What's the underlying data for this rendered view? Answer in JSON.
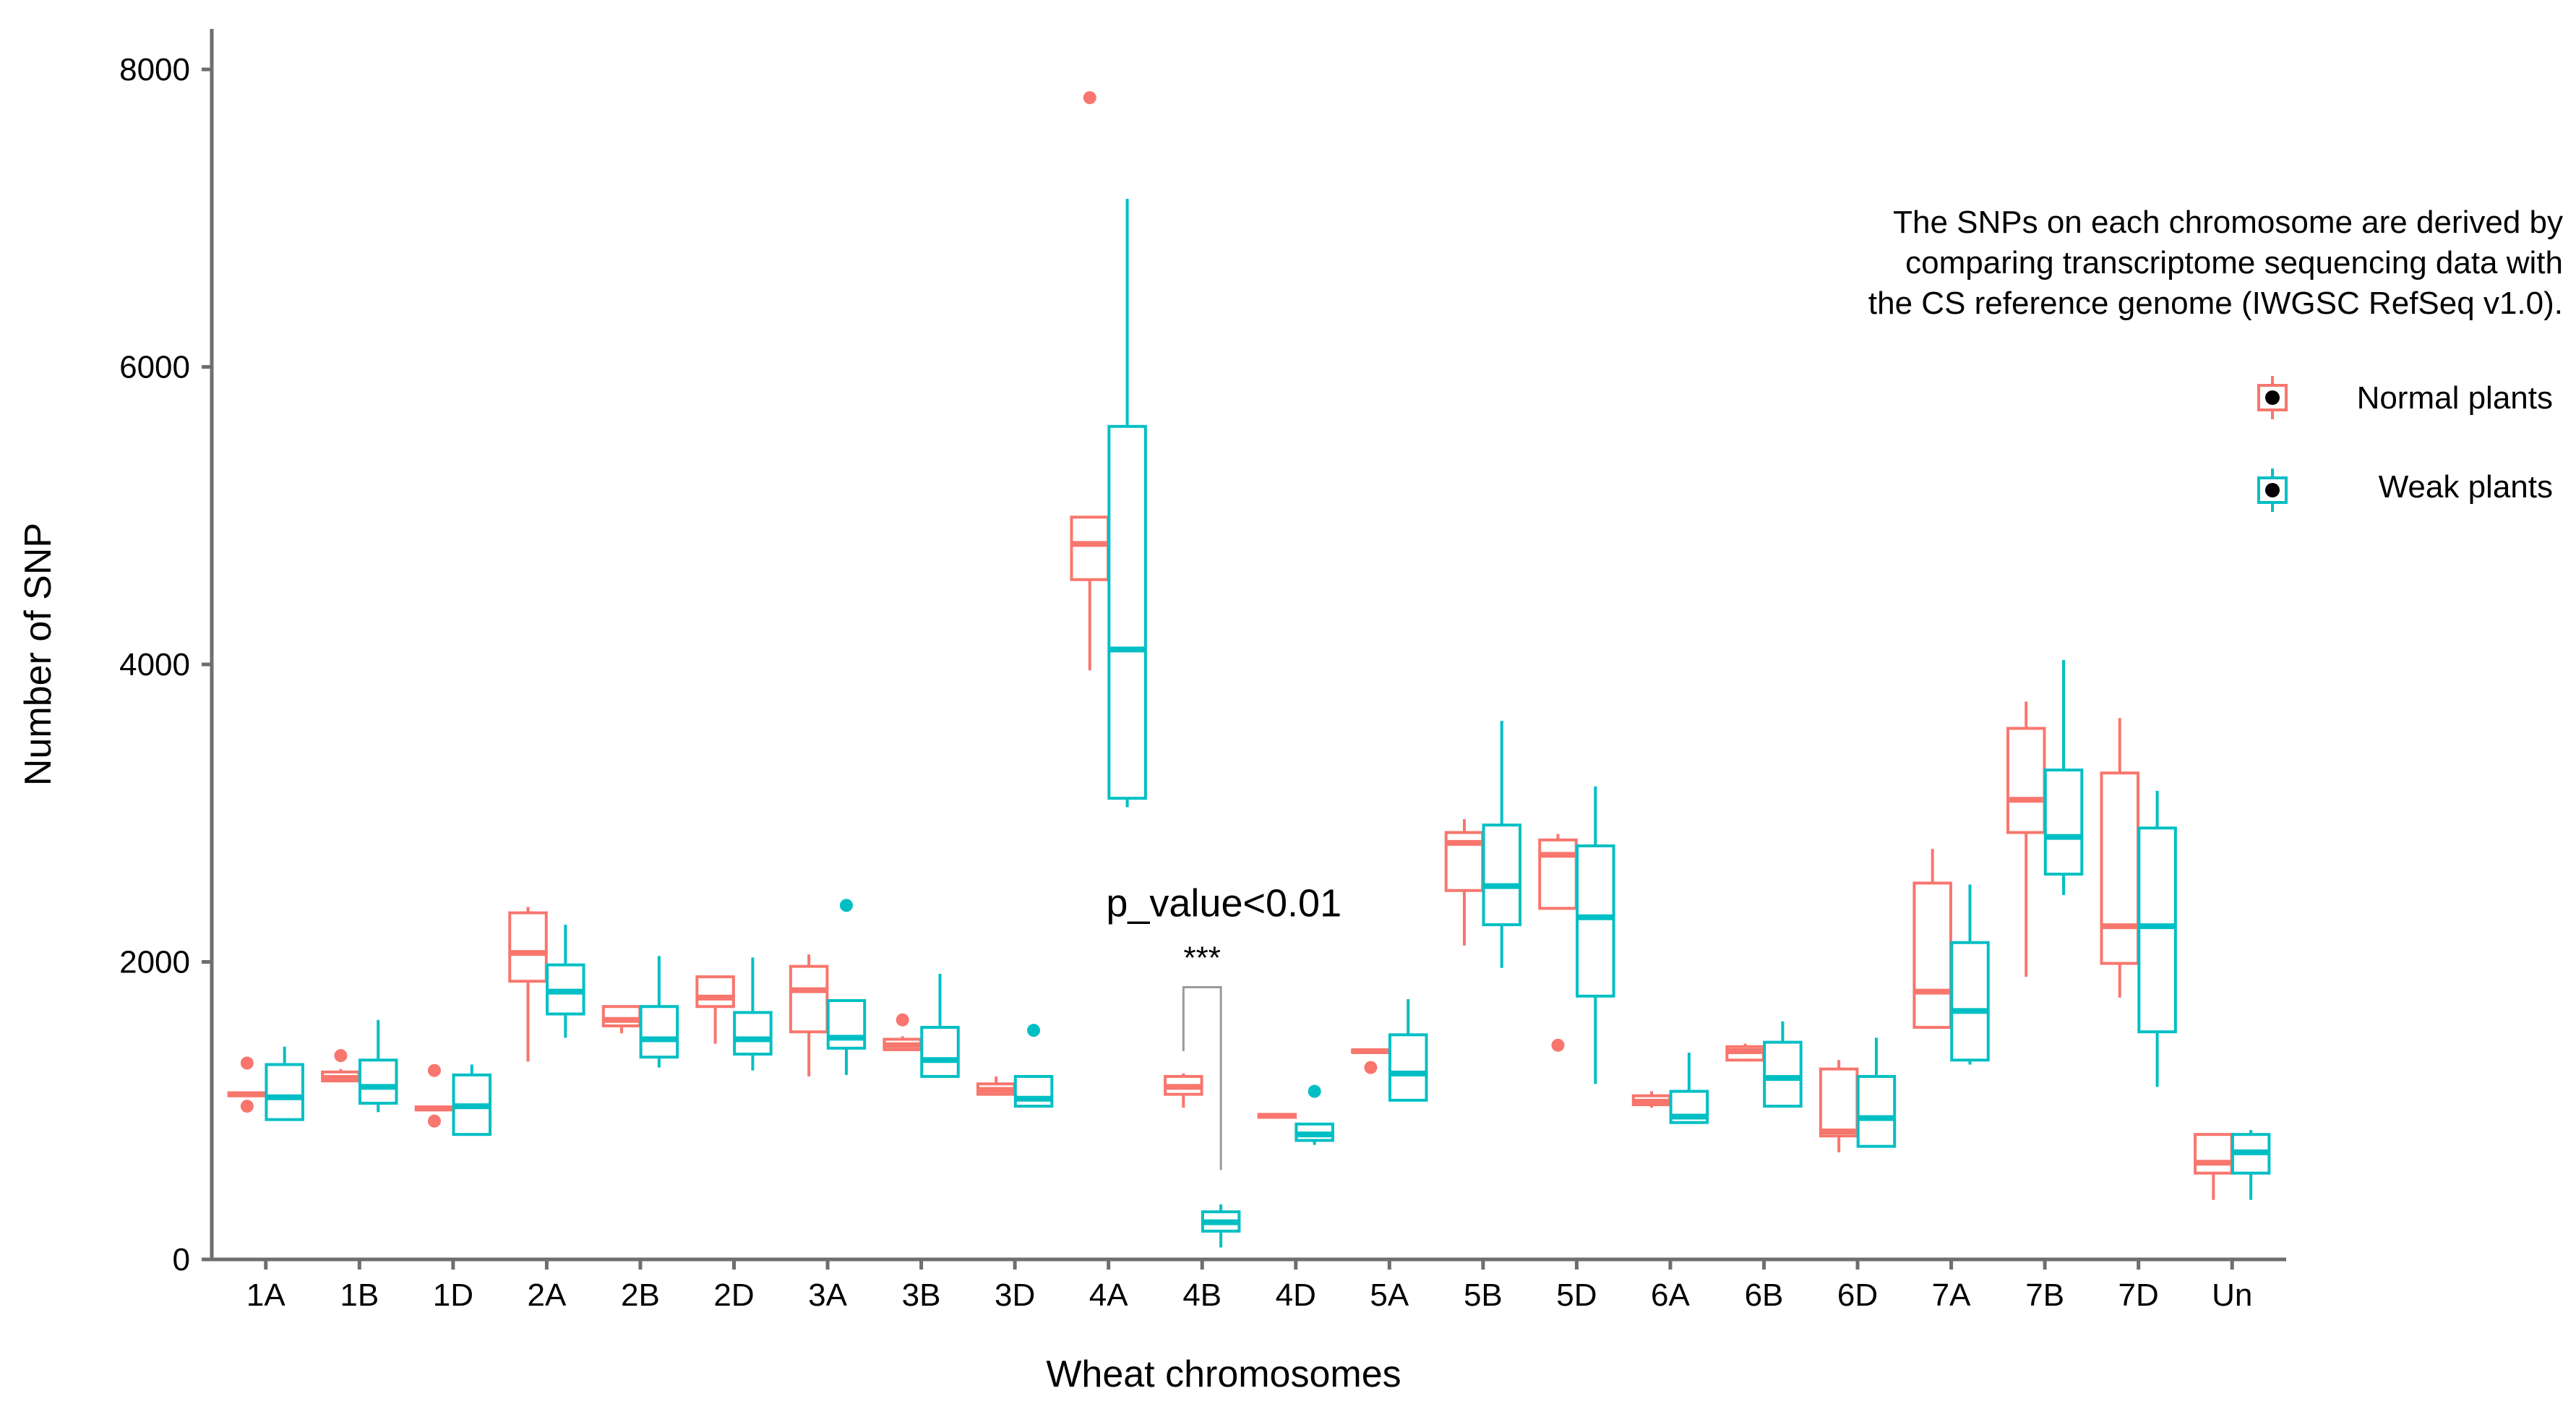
{
  "chart_data": {
    "type": "box",
    "xlabel": "Wheat chromosomes",
    "ylabel": "Number of SNP",
    "ylim": [
      0,
      8000
    ],
    "yticks": [
      0,
      2000,
      4000,
      6000,
      8000
    ],
    "grid": false,
    "legend_position": "right",
    "note_lines": [
      "The SNPs on each chromosome are derived by",
      "comparing transcriptome sequencing data with",
      "the CS reference genome (IWGSC RefSeq v1.0)."
    ],
    "annotation": {
      "text": "p_value<0.01",
      "stars": "***",
      "category": "4B"
    },
    "categories": [
      "1A",
      "1B",
      "1D",
      "2A",
      "2B",
      "2D",
      "3A",
      "3B",
      "3D",
      "4A",
      "4B",
      "4D",
      "5A",
      "5B",
      "5D",
      "6A",
      "6B",
      "6D",
      "7A",
      "7B",
      "7D",
      "Un"
    ],
    "series": [
      {
        "name": "Normal plants",
        "color": "#F8766D",
        "boxes": [
          {
            "whisker_low": 1100,
            "q1": 1100,
            "median": 1110,
            "q3": 1120,
            "whisker_high": 1130,
            "outliers": [
              1320,
              1030
            ]
          },
          {
            "whisker_low": 1190,
            "q1": 1200,
            "median": 1220,
            "q3": 1260,
            "whisker_high": 1280,
            "outliers": [
              1370
            ]
          },
          {
            "whisker_low": 1000,
            "q1": 1005,
            "median": 1015,
            "q3": 1025,
            "whisker_high": 1030,
            "outliers": [
              1270,
              930
            ]
          },
          {
            "whisker_low": 1330,
            "q1": 1870,
            "median": 2060,
            "q3": 2330,
            "whisker_high": 2370,
            "outliers": []
          },
          {
            "whisker_low": 1520,
            "q1": 1570,
            "median": 1610,
            "q3": 1700,
            "whisker_high": 1700,
            "outliers": []
          },
          {
            "whisker_low": 1450,
            "q1": 1700,
            "median": 1760,
            "q3": 1900,
            "whisker_high": 1900,
            "outliers": []
          },
          {
            "whisker_low": 1230,
            "q1": 1530,
            "median": 1810,
            "q3": 1970,
            "whisker_high": 2050,
            "outliers": []
          },
          {
            "whisker_low": 1400,
            "q1": 1410,
            "median": 1440,
            "q3": 1480,
            "whisker_high": 1500,
            "outliers": [
              1610
            ]
          },
          {
            "whisker_low": 1100,
            "q1": 1110,
            "median": 1140,
            "q3": 1180,
            "whisker_high": 1230,
            "outliers": []
          },
          {
            "whisker_low": 3960,
            "q1": 4570,
            "median": 4810,
            "q3": 4990,
            "whisker_high": 4990,
            "outliers": [
              7810
            ]
          },
          {
            "whisker_low": 1020,
            "q1": 1110,
            "median": 1160,
            "q3": 1230,
            "whisker_high": 1250,
            "outliers": []
          },
          {
            "whisker_low": 950,
            "q1": 955,
            "median": 965,
            "q3": 975,
            "whisker_high": 985,
            "outliers": []
          },
          {
            "whisker_low": 1390,
            "q1": 1392,
            "median": 1400,
            "q3": 1408,
            "whisker_high": 1410,
            "outliers": [
              1290
            ]
          },
          {
            "whisker_low": 2110,
            "q1": 2480,
            "median": 2800,
            "q3": 2870,
            "whisker_high": 2960,
            "outliers": []
          },
          {
            "whisker_low": 2360,
            "q1": 2360,
            "median": 2720,
            "q3": 2820,
            "whisker_high": 2860,
            "outliers": [
              1440
            ]
          },
          {
            "whisker_low": 1020,
            "q1": 1040,
            "median": 1060,
            "q3": 1100,
            "whisker_high": 1130,
            "outliers": []
          },
          {
            "whisker_low": 1330,
            "q1": 1340,
            "median": 1400,
            "q3": 1430,
            "whisker_high": 1450,
            "outliers": []
          },
          {
            "whisker_low": 720,
            "q1": 830,
            "median": 860,
            "q3": 1280,
            "whisker_high": 1340,
            "outliers": []
          },
          {
            "whisker_low": 1550,
            "q1": 1560,
            "median": 1800,
            "q3": 2530,
            "whisker_high": 2760,
            "outliers": []
          },
          {
            "whisker_low": 1900,
            "q1": 2870,
            "median": 3090,
            "q3": 3570,
            "whisker_high": 3750,
            "outliers": []
          },
          {
            "whisker_low": 1760,
            "q1": 1990,
            "median": 2240,
            "q3": 3270,
            "whisker_high": 3640,
            "outliers": []
          },
          {
            "whisker_low": 400,
            "q1": 580,
            "median": 650,
            "q3": 840,
            "whisker_high": 840,
            "outliers": []
          }
        ]
      },
      {
        "name": "Weak plants",
        "color": "#00BFC4",
        "boxes": [
          {
            "whisker_low": 940,
            "q1": 940,
            "median": 1090,
            "q3": 1310,
            "whisker_high": 1430,
            "outliers": []
          },
          {
            "whisker_low": 990,
            "q1": 1050,
            "median": 1160,
            "q3": 1340,
            "whisker_high": 1610,
            "outliers": []
          },
          {
            "whisker_low": 840,
            "q1": 840,
            "median": 1030,
            "q3": 1240,
            "whisker_high": 1310,
            "outliers": []
          },
          {
            "whisker_low": 1490,
            "q1": 1650,
            "median": 1800,
            "q3": 1980,
            "whisker_high": 2250,
            "outliers": []
          },
          {
            "whisker_low": 1290,
            "q1": 1360,
            "median": 1480,
            "q3": 1700,
            "whisker_high": 2040,
            "outliers": []
          },
          {
            "whisker_low": 1270,
            "q1": 1380,
            "median": 1480,
            "q3": 1660,
            "whisker_high": 2030,
            "outliers": []
          },
          {
            "whisker_low": 1240,
            "q1": 1420,
            "median": 1490,
            "q3": 1740,
            "whisker_high": 1740,
            "outliers": [
              2380
            ]
          },
          {
            "whisker_low": 1230,
            "q1": 1230,
            "median": 1340,
            "q3": 1560,
            "whisker_high": 1920,
            "outliers": []
          },
          {
            "whisker_low": 1030,
            "q1": 1030,
            "median": 1080,
            "q3": 1230,
            "whisker_high": 1230,
            "outliers": [
              1540
            ]
          },
          {
            "whisker_low": 3040,
            "q1": 3100,
            "median": 4100,
            "q3": 5600,
            "whisker_high": 7130,
            "outliers": []
          },
          {
            "whisker_low": 80,
            "q1": 190,
            "median": 250,
            "q3": 320,
            "whisker_high": 370,
            "outliers": []
          },
          {
            "whisker_low": 770,
            "q1": 800,
            "median": 840,
            "q3": 910,
            "whisker_high": 910,
            "outliers": [
              1130
            ]
          },
          {
            "whisker_low": 1070,
            "q1": 1070,
            "median": 1250,
            "q3": 1510,
            "whisker_high": 1750,
            "outliers": []
          },
          {
            "whisker_low": 1960,
            "q1": 2250,
            "median": 2510,
            "q3": 2920,
            "whisker_high": 3620,
            "outliers": []
          },
          {
            "whisker_low": 1180,
            "q1": 1770,
            "median": 2300,
            "q3": 2780,
            "whisker_high": 3180,
            "outliers": []
          },
          {
            "whisker_low": 920,
            "q1": 920,
            "median": 960,
            "q3": 1130,
            "whisker_high": 1390,
            "outliers": []
          },
          {
            "whisker_low": 1030,
            "q1": 1030,
            "median": 1220,
            "q3": 1460,
            "whisker_high": 1600,
            "outliers": []
          },
          {
            "whisker_low": 760,
            "q1": 760,
            "median": 950,
            "q3": 1230,
            "whisker_high": 1490,
            "outliers": []
          },
          {
            "whisker_low": 1310,
            "q1": 1340,
            "median": 1670,
            "q3": 2130,
            "whisker_high": 2520,
            "outliers": []
          },
          {
            "whisker_low": 2450,
            "q1": 2590,
            "median": 2840,
            "q3": 3290,
            "whisker_high": 4030,
            "outliers": []
          },
          {
            "whisker_low": 1160,
            "q1": 1530,
            "median": 2240,
            "q3": 2900,
            "whisker_high": 3150,
            "outliers": []
          },
          {
            "whisker_low": 400,
            "q1": 580,
            "median": 720,
            "q3": 840,
            "whisker_high": 870,
            "outliers": []
          }
        ]
      }
    ]
  }
}
